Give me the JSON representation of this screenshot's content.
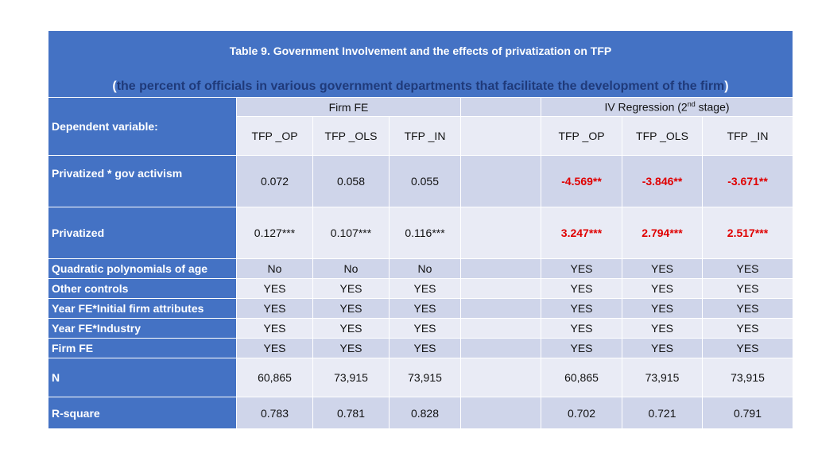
{
  "title": "Table 9. Government Involvement and the effects of privatization on TFP",
  "subtitle": {
    "open_paren": "(",
    "text": "the percent of officials in various government departments that facilitate the development of the firm",
    "close_paren": ")"
  },
  "header": {
    "dependent_label": "Dependent variable:",
    "group1": "Firm FE",
    "group2_prefix": "IV Regression (2",
    "group2_sup": "nd",
    "group2_suffix": " stage)",
    "columns": [
      "TFP _OP",
      "TFP _OLS",
      "TFP _IN",
      "",
      "TFP _OP",
      "TFP _OLS",
      "TFP _IN"
    ]
  },
  "rows": [
    {
      "label": "Privatized * gov activism",
      "values": [
        "0.072",
        "0.058",
        "0.055",
        "",
        "-4.569**",
        "-3.846**",
        "-3.671**"
      ]
    },
    {
      "label": "Privatized",
      "values": [
        "0.127***",
        "0.107***",
        "0.116***",
        "",
        "3.247***",
        "2.794***",
        "2.517***"
      ]
    },
    {
      "label": "Quadratic polynomials of age",
      "values": [
        "No",
        "No",
        "No",
        "",
        "YES",
        "YES",
        "YES"
      ]
    },
    {
      "label": "Other controls",
      "values": [
        "YES",
        "YES",
        "YES",
        "",
        "YES",
        "YES",
        "YES"
      ]
    },
    {
      "label": "Year FE*Initial firm attributes",
      "values": [
        "YES",
        "YES",
        "YES",
        "",
        "YES",
        "YES",
        "YES"
      ]
    },
    {
      "label": "Year FE*Industry",
      "values": [
        "YES",
        "YES",
        "YES",
        "",
        "YES",
        "YES",
        "YES"
      ]
    },
    {
      "label": "Firm FE",
      "values": [
        "YES",
        "YES",
        "YES",
        "",
        "YES",
        "YES",
        "YES"
      ]
    },
    {
      "label": "N",
      "values": [
        "60,865",
        "73,915",
        "73,915",
        "",
        "60,865",
        "73,915",
        "73,915"
      ]
    },
    {
      "label": "R-square",
      "values": [
        "0.783",
        "0.781",
        "0.828",
        "",
        "0.702",
        "0.721",
        "0.791"
      ]
    }
  ],
  "colors": {
    "header_blue": "#4472c4",
    "row_dark": "#cfd5ea",
    "row_light": "#e9ebf5",
    "significant_red": "#e00000",
    "subtitle_navy": "#1f3a7a"
  }
}
